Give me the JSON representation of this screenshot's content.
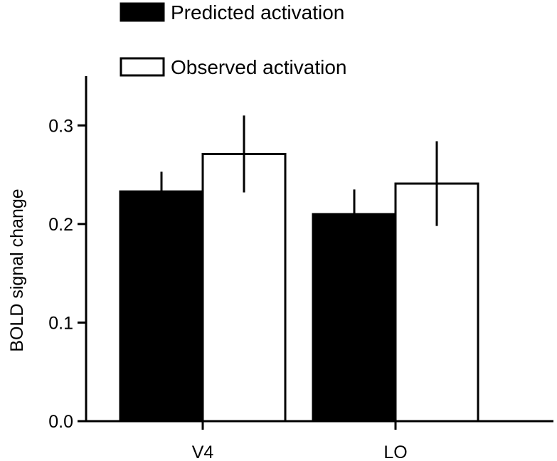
{
  "chart_data": {
    "type": "bar",
    "title": "",
    "xlabel": "",
    "ylabel": "BOLD signal change",
    "categories": [
      "V4",
      "LO"
    ],
    "series": [
      {
        "name": "Predicted activation",
        "fill": "#000000",
        "values": [
          0.233,
          0.21
        ],
        "error": [
          0.02,
          0.025
        ]
      },
      {
        "name": "Observed activation",
        "fill": "#ffffff",
        "values": [
          0.271,
          0.241
        ],
        "error": [
          0.039,
          0.043
        ]
      }
    ],
    "ylim": [
      0,
      0.35
    ],
    "yticks": [
      0.0,
      0.1,
      0.2,
      0.3
    ],
    "ytick_labels": [
      "0.0",
      "0.1",
      "0.2",
      "0.3"
    ],
    "grid": false,
    "legend_position": "top-center"
  }
}
